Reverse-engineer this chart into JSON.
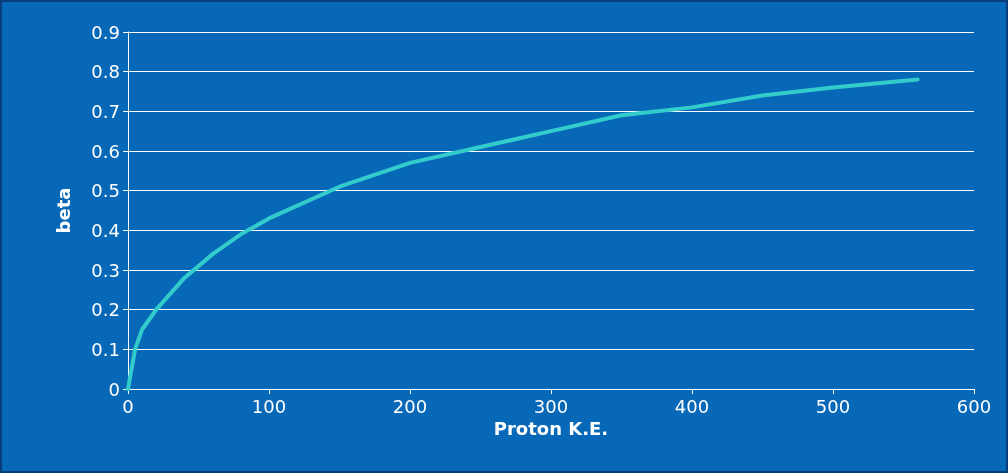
{
  "chart_data": {
    "type": "line",
    "xlabel": "Proton K.E.",
    "ylabel": "beta",
    "x": [
      0,
      5,
      10,
      20,
      40,
      60,
      80,
      100,
      150,
      200,
      250,
      300,
      350,
      400,
      450,
      500,
      560
    ],
    "series": [
      {
        "color": "#33cccc",
        "values": [
          0,
          0.1,
          0.15,
          0.2,
          0.28,
          0.34,
          0.39,
          0.43,
          0.51,
          0.57,
          0.61,
          0.65,
          0.69,
          0.71,
          0.74,
          0.76,
          0.78
        ]
      }
    ],
    "xlim": [
      0,
      600
    ],
    "xticks": [
      0,
      100,
      200,
      300,
      400,
      500,
      600
    ],
    "ylim": [
      0,
      0.9
    ],
    "yticks": [
      0,
      0.1,
      0.2,
      0.3,
      0.4,
      0.5,
      0.6,
      0.7,
      0.8,
      0.9
    ],
    "grid": "y",
    "marker": "none",
    "line_style": "solid"
  }
}
